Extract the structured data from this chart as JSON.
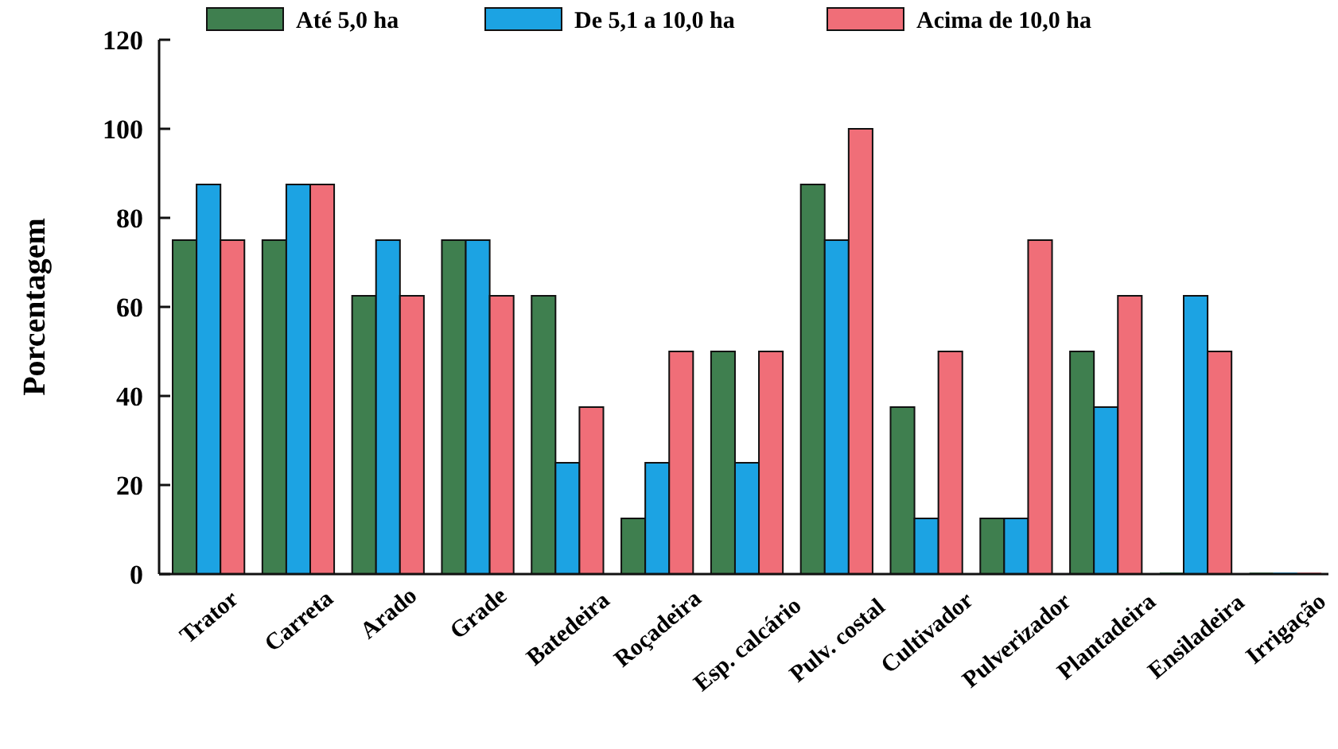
{
  "chart_data": {
    "type": "bar",
    "ylabel": "Porcentagem",
    "categories": [
      "Trator",
      "Carreta",
      "Arado",
      "Grade",
      "Batedeira",
      "Roçadeira",
      "Esp. calcário",
      "Pulv. costal",
      "Cultivador",
      "Pulverizador",
      "Plantadeira",
      "Ensiladeira",
      "Irrigação"
    ],
    "series": [
      {
        "name": "Até 5,0 ha",
        "color": "#3f7f4f",
        "values": [
          75,
          75,
          62.5,
          75,
          62.5,
          12.5,
          50,
          87.5,
          37.5,
          12.5,
          50,
          0,
          0
        ]
      },
      {
        "name": "De 5,1 a 10,0 ha",
        "color": "#1ca3e3",
        "values": [
          87.5,
          87.5,
          75,
          75,
          25,
          25,
          25,
          75,
          12.5,
          12.5,
          37.5,
          62.5,
          0
        ]
      },
      {
        "name": "Acima de 10,0 ha",
        "color": "#f06e78",
        "values": [
          75,
          87.5,
          62.5,
          62.5,
          37.5,
          50,
          50,
          100,
          50,
          75,
          62.5,
          50,
          0
        ]
      }
    ],
    "ylim": [
      0,
      120
    ],
    "yticks": [
      0,
      20,
      40,
      60,
      80,
      100,
      120
    ],
    "grid": false,
    "legend": "top"
  }
}
